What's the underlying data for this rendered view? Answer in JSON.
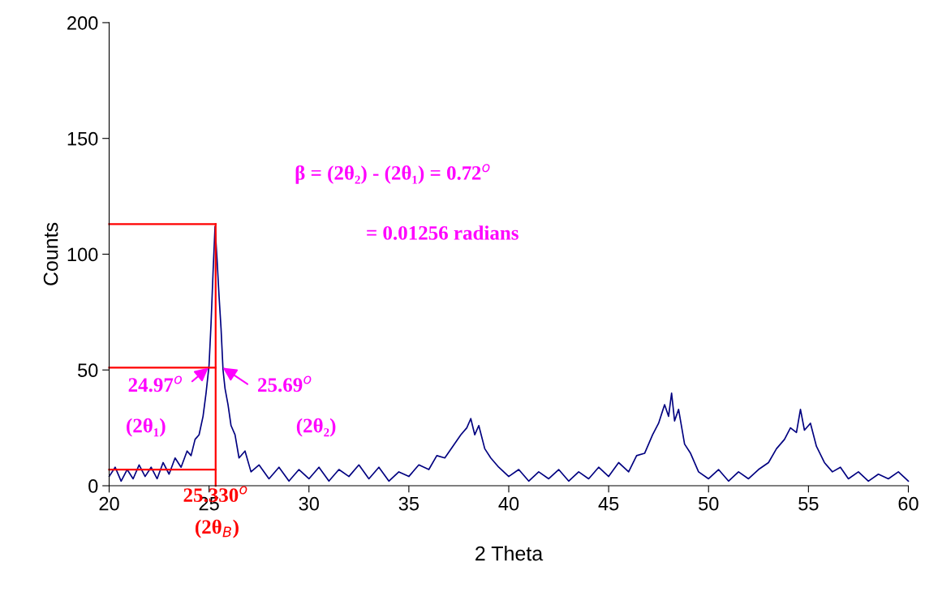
{
  "chart_data": {
    "type": "line",
    "xlabel": "2 Theta",
    "ylabel": "Counts",
    "xlim": [
      20,
      60
    ],
    "ylim": [
      0,
      200
    ],
    "xticks": [
      20,
      25,
      30,
      35,
      40,
      45,
      50,
      55,
      60
    ],
    "yticks": [
      0,
      50,
      100,
      150,
      200
    ],
    "grid": false,
    "series": [
      {
        "color": "#000080",
        "x": [
          20,
          20.3,
          20.6,
          20.9,
          21.2,
          21.5,
          21.8,
          22.1,
          22.4,
          22.7,
          23.0,
          23.3,
          23.6,
          23.9,
          24.1,
          24.3,
          24.5,
          24.7,
          24.85,
          25.0,
          25.1,
          25.2,
          25.3,
          25.4,
          25.5,
          25.6,
          25.7,
          25.8,
          25.95,
          26.1,
          26.3,
          26.5,
          26.8,
          27.1,
          27.5,
          28.0,
          28.5,
          29.0,
          29.5,
          30.0,
          30.5,
          31.0,
          31.5,
          32.0,
          32.5,
          33.0,
          33.5,
          34.0,
          34.5,
          35.0,
          35.5,
          36.0,
          36.4,
          36.8,
          37.2,
          37.6,
          37.9,
          38.1,
          38.3,
          38.5,
          38.8,
          39.1,
          39.5,
          40.0,
          40.5,
          41.0,
          41.5,
          42.0,
          42.5,
          43.0,
          43.5,
          44.0,
          44.5,
          45.0,
          45.5,
          46.0,
          46.4,
          46.8,
          47.2,
          47.5,
          47.8,
          48.0,
          48.15,
          48.3,
          48.5,
          48.8,
          49.1,
          49.5,
          50.0,
          50.5,
          51.0,
          51.5,
          52.0,
          52.5,
          53.0,
          53.4,
          53.8,
          54.1,
          54.4,
          54.6,
          54.8,
          55.1,
          55.4,
          55.8,
          56.2,
          56.6,
          57.0,
          57.5,
          58.0,
          58.5,
          59.0,
          59.5,
          60.0
        ],
        "values": [
          4,
          8,
          2,
          7,
          3,
          9,
          4,
          8,
          3,
          10,
          5,
          12,
          8,
          15,
          13,
          20,
          22,
          30,
          40,
          52,
          70,
          92,
          112,
          98,
          82,
          68,
          50,
          42,
          35,
          26,
          22,
          12,
          15,
          6,
          9,
          3,
          8,
          2,
          7,
          3,
          8,
          2,
          7,
          4,
          9,
          3,
          8,
          2,
          6,
          4,
          9,
          7,
          13,
          12,
          17,
          22,
          25,
          29,
          22,
          26,
          16,
          12,
          8,
          4,
          7,
          2,
          6,
          3,
          7,
          2,
          6,
          3,
          8,
          4,
          10,
          6,
          13,
          14,
          22,
          27,
          35,
          30,
          40,
          28,
          33,
          18,
          14,
          6,
          3,
          7,
          2,
          6,
          3,
          7,
          10,
          16,
          20,
          25,
          23,
          33,
          24,
          27,
          17,
          10,
          6,
          8,
          3,
          6,
          2,
          5,
          3,
          6,
          2
        ]
      },
      {
        "color": "#ff0000",
        "x": [
          25.33,
          25.33
        ],
        "values": [
          0,
          113
        ]
      },
      {
        "color": "#ff0000",
        "x": [
          20,
          25.33
        ],
        "values": [
          113,
          113
        ]
      },
      {
        "color": "#ff0000",
        "x": [
          20,
          25.33
        ],
        "values": [
          51,
          51
        ]
      },
      {
        "color": "#ff0000",
        "x": [
          20,
          25.33
        ],
        "values": [
          7,
          7
        ]
      }
    ],
    "annotations": [
      {
        "text": "24.97$^{o}$",
        "x": 24.97,
        "y": 51
      },
      {
        "text": "25.69$^{o}$",
        "x": 25.69,
        "y": 51
      },
      {
        "text": "25.330$^{o}$",
        "x": 25.33,
        "y": 0
      },
      "(2θ₁)",
      "(2θ₂)",
      "(2θ$_{B}$)",
      "β = (2θ₂) - (2θ₁) = 0.72$^{o}$",
      "= 0.01256 radians"
    ]
  }
}
